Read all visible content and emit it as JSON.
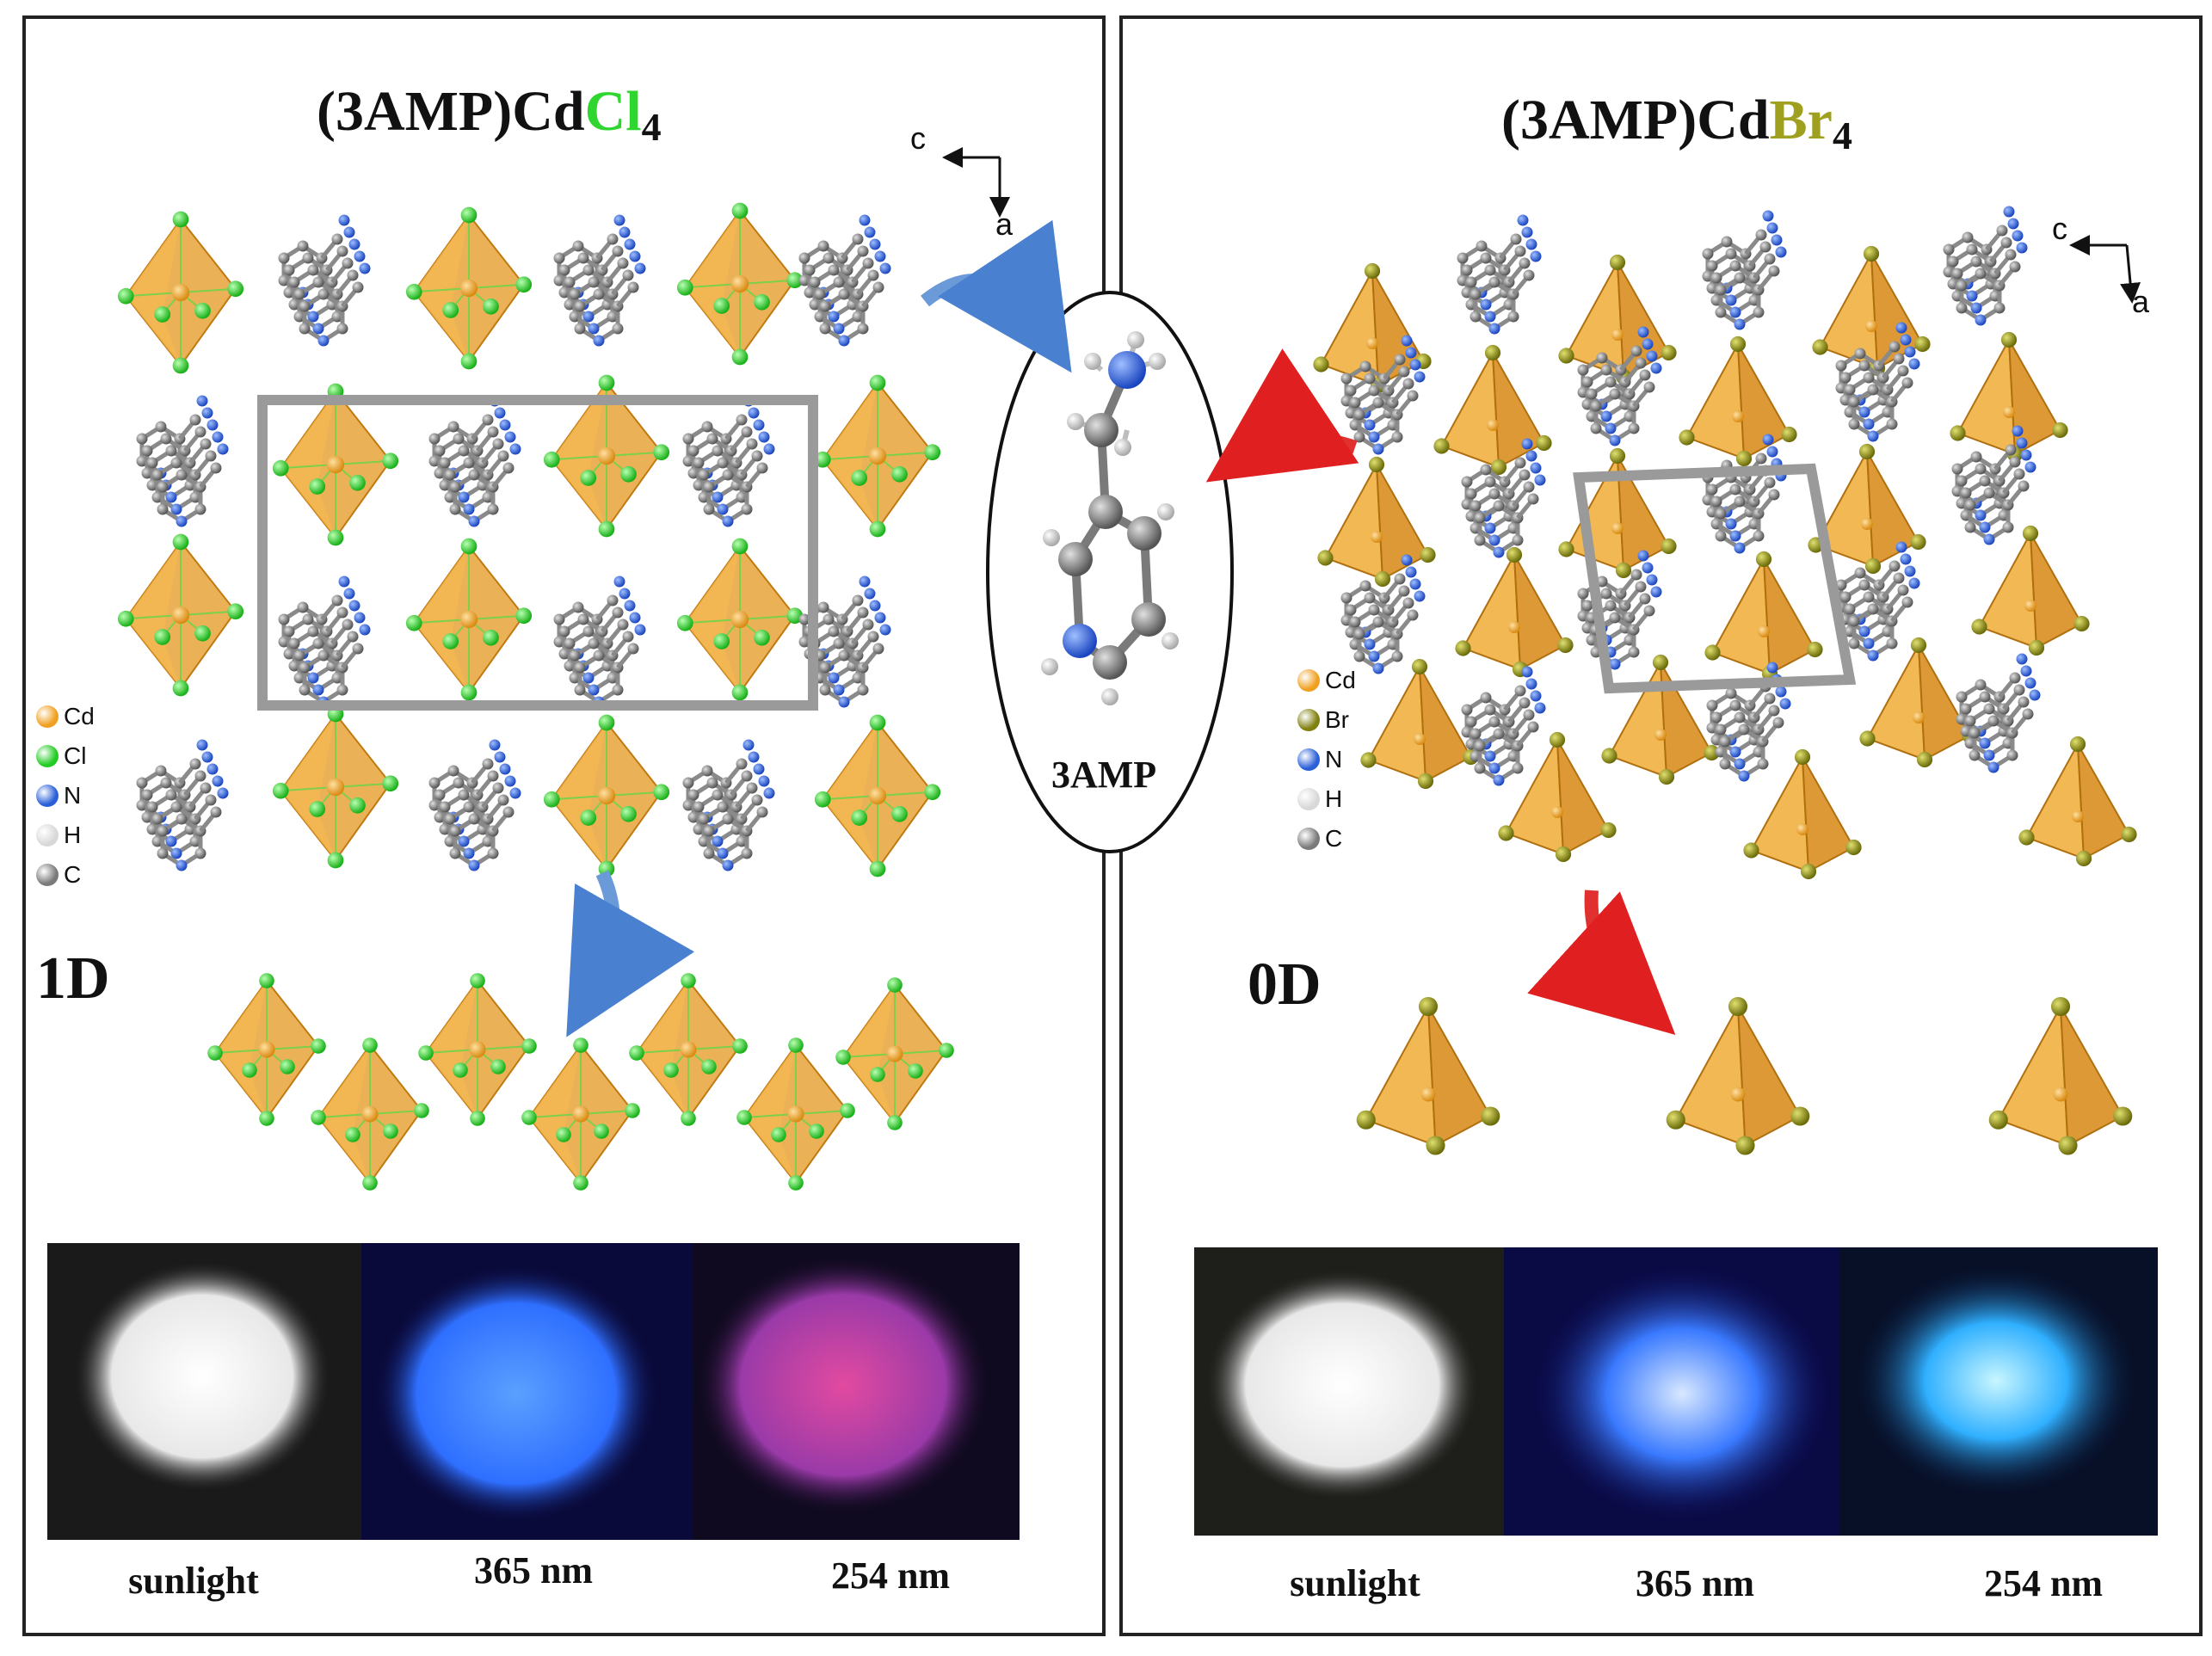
{
  "left_panel": {
    "title_prefix": "(3AMP)Cd",
    "title_halide": "Cl",
    "title_subscript": "4",
    "halide_color": "#2fd62f",
    "dimensionality": "1D",
    "axis_c": "c",
    "axis_a": "a",
    "legend": [
      {
        "label": "Cd",
        "color": "#f0a020"
      },
      {
        "label": "Cl",
        "color": "#22cc22"
      },
      {
        "label": "N",
        "color": "#2a5fd8"
      },
      {
        "label": "H",
        "color": "#d8d8d8"
      },
      {
        "label": "C",
        "color": "#7a7a7a"
      }
    ],
    "photo_captions": [
      "sunlight",
      "365 nm",
      "254 nm"
    ]
  },
  "right_panel": {
    "title_prefix": "(3AMP)Cd",
    "title_halide": "Br",
    "title_subscript": "4",
    "halide_color": "#a0a020",
    "dimensionality": "0D",
    "axis_c": "c",
    "axis_a": "a",
    "legend": [
      {
        "label": "Cd",
        "color": "#f0a020"
      },
      {
        "label": "Br",
        "color": "#808010"
      },
      {
        "label": "N",
        "color": "#2a5fd8"
      },
      {
        "label": "H",
        "color": "#d8d8d8"
      },
      {
        "label": "C",
        "color": "#7a7a7a"
      }
    ],
    "photo_captions": [
      "sunlight",
      "365 nm",
      "254 nm"
    ]
  },
  "molecule": {
    "label": "3AMP"
  },
  "colors": {
    "cd_polyhedron": "#e8a33a",
    "carbon": "#8a8a8a",
    "nitrogen": "#2a5fd8",
    "arrow_blue": "#6a9ad8",
    "arrow_red": "#e03030",
    "cell_frame": "#9a9a9a"
  }
}
